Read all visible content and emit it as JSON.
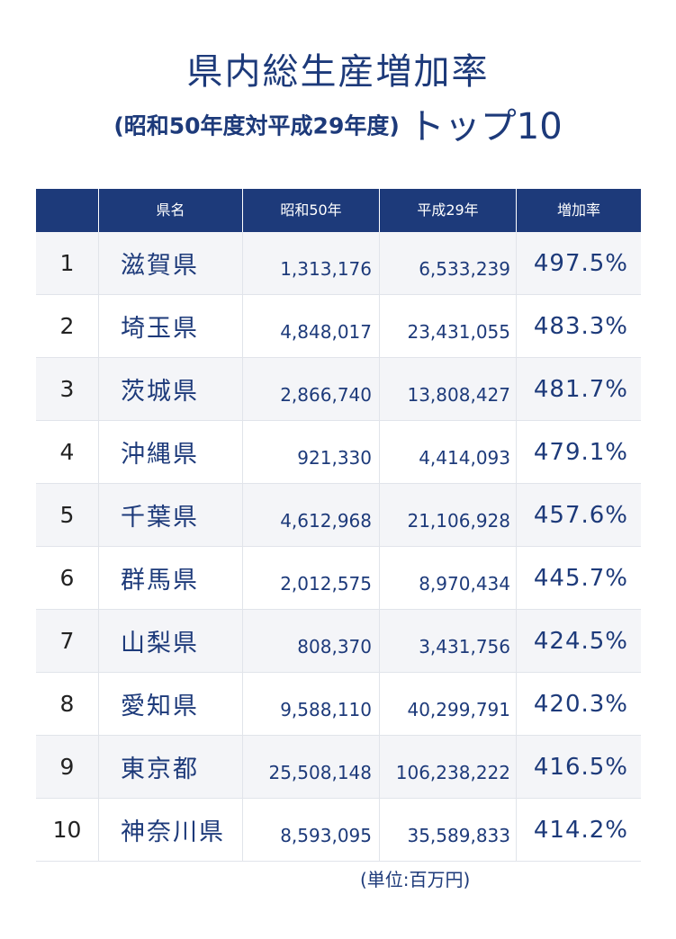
{
  "title": "県内総生産増加率",
  "subtitle": {
    "paren": "(昭和50年度対平成29年度)",
    "top": "トップ10"
  },
  "colors": {
    "navy": "#1d3a7a",
    "row_shade": "#f4f5f8"
  },
  "table": {
    "headers": [
      "",
      "県名",
      "昭和50年",
      "平成29年",
      "増加率"
    ],
    "rows": [
      {
        "rank": "1",
        "pref": "滋賀県",
        "showa": "1,313,176",
        "heisei": "6,533,239",
        "rate": "497.5%"
      },
      {
        "rank": "2",
        "pref": "埼玉県",
        "showa": "4,848,017",
        "heisei": "23,431,055",
        "rate": "483.3%"
      },
      {
        "rank": "3",
        "pref": "茨城県",
        "showa": "2,866,740",
        "heisei": "13,808,427",
        "rate": "481.7%"
      },
      {
        "rank": "4",
        "pref": "沖縄県",
        "showa": "921,330",
        "heisei": "4,414,093",
        "rate": "479.1%"
      },
      {
        "rank": "5",
        "pref": "千葉県",
        "showa": "4,612,968",
        "heisei": "21,106,928",
        "rate": "457.6%"
      },
      {
        "rank": "6",
        "pref": "群馬県",
        "showa": "2,012,575",
        "heisei": "8,970,434",
        "rate": "445.7%"
      },
      {
        "rank": "7",
        "pref": "山梨県",
        "showa": "808,370",
        "heisei": "3,431,756",
        "rate": "424.5%"
      },
      {
        "rank": "8",
        "pref": "愛知県",
        "showa": "9,588,110",
        "heisei": "40,299,791",
        "rate": "420.3%"
      },
      {
        "rank": "9",
        "pref": "東京都",
        "showa": "25,508,148",
        "heisei": "106,238,222",
        "rate": "416.5%"
      },
      {
        "rank": "10",
        "pref": "神奈川県",
        "showa": "8,593,095",
        "heisei": "35,589,833",
        "rate": "414.2%"
      }
    ]
  },
  "unit_note": "(単位:百万円)"
}
